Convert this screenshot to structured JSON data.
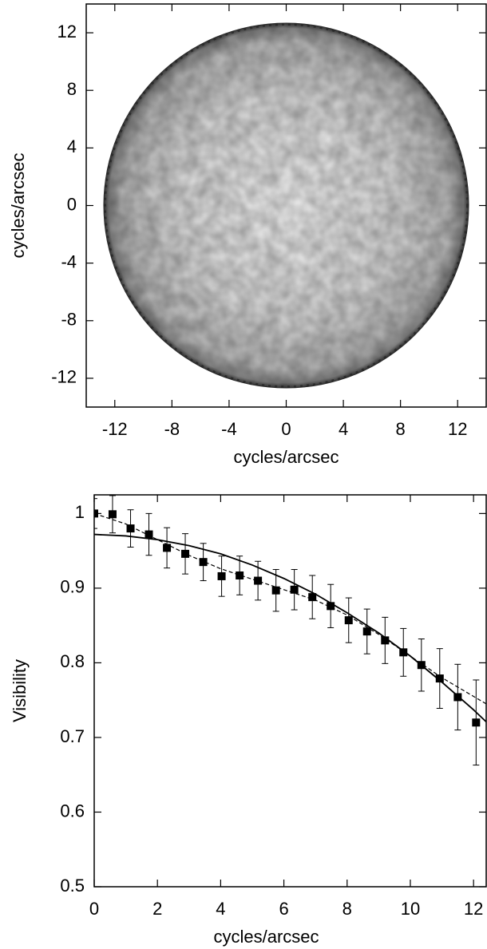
{
  "chart_data": [
    {
      "type": "heatmap",
      "xlabel": "cycles/arcsec",
      "ylabel": "cycles/arcsec",
      "xlim": [
        -14,
        14
      ],
      "ylim": [
        -14,
        14
      ],
      "xticks": [
        -12,
        -8,
        -4,
        0,
        4,
        8,
        12
      ],
      "yticks": [
        -12,
        -8,
        -4,
        0,
        4,
        8,
        12
      ],
      "disk_radius": 12.8
    },
    {
      "type": "scatter",
      "xlabel": "cycles/arcsec",
      "ylabel": "Visibility",
      "xlim": [
        0,
        12.4
      ],
      "ylim": [
        0.5,
        1.025
      ],
      "xticks": [
        0,
        2,
        4,
        6,
        8,
        10,
        12
      ],
      "yticks": [
        0.5,
        0.6,
        0.7,
        0.8,
        0.9,
        1
      ],
      "series": [
        {
          "color": "#000000",
          "marker": "square",
          "x": [
            0,
            0.58,
            1.15,
            1.73,
            2.3,
            2.88,
            3.45,
            4.03,
            4.6,
            5.18,
            5.75,
            6.33,
            6.9,
            7.48,
            8.05,
            8.63,
            9.2,
            9.78,
            10.35,
            10.93,
            11.5,
            12.08
          ],
          "values": [
            1.0,
            0.999,
            0.98,
            0.972,
            0.954,
            0.946,
            0.935,
            0.916,
            0.917,
            0.91,
            0.897,
            0.898,
            0.888,
            0.876,
            0.857,
            0.842,
            0.83,
            0.814,
            0.797,
            0.779,
            0.754,
            0.72
          ],
          "errors": [
            0.02,
            0.025,
            0.025,
            0.028,
            0.027,
            0.027,
            0.025,
            0.027,
            0.026,
            0.026,
            0.028,
            0.027,
            0.029,
            0.029,
            0.03,
            0.03,
            0.031,
            0.032,
            0.035,
            0.04,
            0.044,
            0.057
          ]
        },
        {
          "color": "#000000",
          "line": "dashed",
          "x": [
            0,
            1,
            2,
            3,
            4,
            5,
            6,
            7,
            8,
            9,
            10,
            11,
            12,
            12.4
          ],
          "values": [
            1.0,
            0.986,
            0.965,
            0.944,
            0.926,
            0.912,
            0.898,
            0.884,
            0.864,
            0.838,
            0.809,
            0.78,
            0.755,
            0.745
          ]
        },
        {
          "color": "#000000",
          "line": "solid",
          "x": [
            0,
            1,
            2,
            3,
            4,
            5,
            6,
            7,
            8,
            9,
            10,
            11,
            12,
            12.4
          ],
          "values": [
            0.972,
            0.97,
            0.965,
            0.957,
            0.946,
            0.931,
            0.913,
            0.892,
            0.867,
            0.84,
            0.809,
            0.774,
            0.737,
            0.721
          ]
        }
      ]
    }
  ]
}
